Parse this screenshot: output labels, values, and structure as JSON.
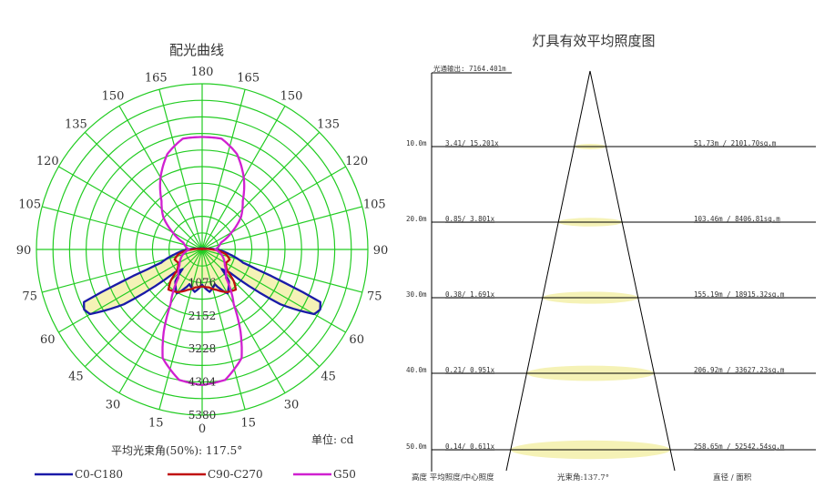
{
  "chart_data": [
    {
      "type": "polar",
      "title": "配光曲线",
      "unit_label": "单位: cd",
      "beam_angle_label": "平均光束角(50%): 117.5°",
      "angle_labels_left": [
        "180",
        "165",
        "150",
        "135",
        "120",
        "105",
        "90",
        "75",
        "60",
        "45",
        "30",
        "15",
        "0"
      ],
      "angle_labels_right": [
        "165",
        "150",
        "135",
        "120",
        "105",
        "90",
        "75",
        "60",
        "45",
        "30",
        "15"
      ],
      "radial_labels": [
        "1076",
        "2152",
        "3228",
        "4304",
        "5380"
      ],
      "radial_max": 5380,
      "grid": true,
      "series": [
        {
          "name": "C0-C180",
          "color": "#1a1aa8",
          "points": [
            [
              0,
              1150
            ],
            [
              10,
              1400
            ],
            [
              20,
              1200
            ],
            [
              30,
              1650
            ],
            [
              40,
              1350
            ],
            [
              45,
              900
            ],
            [
              50,
              1150
            ],
            [
              55,
              3100
            ],
            [
              60,
              4200
            ],
            [
              63,
              4300
            ],
            [
              66,
              4200
            ],
            [
              68,
              2900
            ],
            [
              70,
              1900
            ],
            [
              72,
              1400
            ],
            [
              80,
              900
            ],
            [
              90,
              450
            ],
            [
              100,
              100
            ],
            [
              180,
              0
            ]
          ]
        },
        {
          "name": "C90-C270",
          "color": "#c01010",
          "points": [
            [
              0,
              1200
            ],
            [
              10,
              1250
            ],
            [
              20,
              1400
            ],
            [
              30,
              1600
            ],
            [
              40,
              1700
            ],
            [
              45,
              1450
            ],
            [
              50,
              1050
            ],
            [
              55,
              950
            ],
            [
              60,
              880
            ],
            [
              70,
              950
            ],
            [
              78,
              800
            ],
            [
              85,
              550
            ],
            [
              90,
              320
            ],
            [
              100,
              60
            ],
            [
              180,
              0
            ]
          ]
        },
        {
          "name": "G50",
          "color": "#d020d0",
          "points": [
            [
              0,
              4400
            ],
            [
              10,
              4300
            ],
            [
              20,
              3750
            ],
            [
              25,
              2950
            ],
            [
              30,
              2050
            ],
            [
              40,
              1200
            ],
            [
              55,
              900
            ],
            [
              70,
              720
            ],
            [
              90,
              430
            ],
            [
              110,
              650
            ],
            [
              120,
              1100
            ],
            [
              130,
              1650
            ],
            [
              140,
              2050
            ],
            [
              150,
              2700
            ],
            [
              160,
              3300
            ],
            [
              170,
              3650
            ],
            [
              180,
              3650
            ]
          ]
        }
      ],
      "fill_color": "#f5f2b6"
    },
    {
      "type": "diagram",
      "title": "灯具有效平均照度图",
      "luminous_flux_label": "光通输出: 7164.401m",
      "beam_angle_label": "光束角:137.7°",
      "rows": [
        {
          "height": "10.0m",
          "illuminance": "3.41/ 15.201x",
          "diameter_area": "51.73m / 2101.70sq.m"
        },
        {
          "height": "20.0m",
          "illuminance": "0.85/ 3.801x",
          "diameter_area": "103.46m / 8406.81sq.m"
        },
        {
          "height": "30.0m",
          "illuminance": "0.38/ 1.691x",
          "diameter_area": "155.19m / 18915.32sq.m"
        },
        {
          "height": "40.0m",
          "illuminance": "0.21/ 0.951x",
          "diameter_area": "206.92m / 33627.23sq.m"
        },
        {
          "height": "50.0m",
          "illuminance": "0.14/ 0.611x",
          "diameter_area": "258.65m / 52542.54sq.m"
        }
      ],
      "footer_left": "高度 平均照度/中心照度",
      "footer_right": "直径 / 面积",
      "ellipse_color": "#f5f2b6"
    }
  ]
}
